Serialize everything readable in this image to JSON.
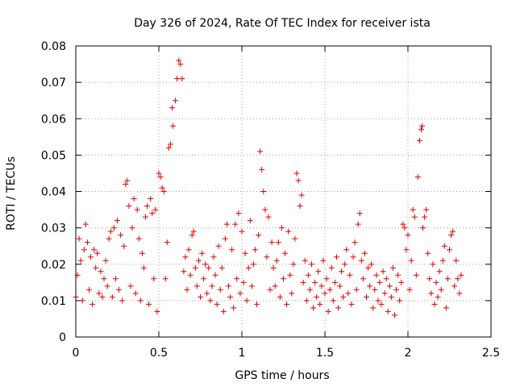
{
  "chart_data": {
    "type": "scatter",
    "title": "Day 326 of 2024, Rate Of TEC Index for receiver ista",
    "xlabel": "GPS time / hours",
    "ylabel": "ROTI / TECUs",
    "xlim": [
      0,
      2.5
    ],
    "ylim": [
      0,
      0.08
    ],
    "xticks": [
      0,
      0.5,
      1,
      1.5,
      2,
      2.5
    ],
    "xtick_labels": [
      "0",
      "0.5",
      "1",
      "1.5",
      "2",
      "2.5"
    ],
    "yticks": [
      0,
      0.01,
      0.02,
      0.03,
      0.04,
      0.05,
      0.06,
      0.07,
      0.08
    ],
    "ytick_labels": [
      "0",
      "0.01",
      "0.02",
      "0.03",
      "0.04",
      "0.05",
      "0.06",
      "0.07",
      "0.08"
    ],
    "grid": true,
    "marker": "+",
    "color": "#e00000",
    "series": [
      {
        "name": "ROTI",
        "points": [
          [
            0.0,
            0.011
          ],
          [
            0.01,
            0.017
          ],
          [
            0.02,
            0.027
          ],
          [
            0.03,
            0.021
          ],
          [
            0.04,
            0.01
          ],
          [
            0.05,
            0.024
          ],
          [
            0.06,
            0.031
          ],
          [
            0.07,
            0.026
          ],
          [
            0.08,
            0.013
          ],
          [
            0.09,
            0.022
          ],
          [
            0.1,
            0.009
          ],
          [
            0.11,
            0.024
          ],
          [
            0.12,
            0.019
          ],
          [
            0.13,
            0.023
          ],
          [
            0.14,
            0.012
          ],
          [
            0.15,
            0.018
          ],
          [
            0.16,
            0.011
          ],
          [
            0.17,
            0.016
          ],
          [
            0.18,
            0.021
          ],
          [
            0.19,
            0.014
          ],
          [
            0.2,
            0.027
          ],
          [
            0.21,
            0.029
          ],
          [
            0.22,
            0.011
          ],
          [
            0.23,
            0.03
          ],
          [
            0.24,
            0.016
          ],
          [
            0.25,
            0.032
          ],
          [
            0.26,
            0.013
          ],
          [
            0.27,
            0.028
          ],
          [
            0.28,
            0.01
          ],
          [
            0.29,
            0.025
          ],
          [
            0.3,
            0.042
          ],
          [
            0.31,
            0.043
          ],
          [
            0.32,
            0.036
          ],
          [
            0.33,
            0.014
          ],
          [
            0.34,
            0.03
          ],
          [
            0.35,
            0.038
          ],
          [
            0.36,
            0.012
          ],
          [
            0.37,
            0.035
          ],
          [
            0.38,
            0.027
          ],
          [
            0.39,
            0.01
          ],
          [
            0.4,
            0.023
          ],
          [
            0.41,
            0.019
          ],
          [
            0.42,
            0.033
          ],
          [
            0.43,
            0.036
          ],
          [
            0.44,
            0.009
          ],
          [
            0.45,
            0.038
          ],
          [
            0.46,
            0.034
          ],
          [
            0.47,
            0.016
          ],
          [
            0.48,
            0.035
          ],
          [
            0.49,
            0.007
          ],
          [
            0.5,
            0.045
          ],
          [
            0.51,
            0.044
          ],
          [
            0.52,
            0.041
          ],
          [
            0.53,
            0.04
          ],
          [
            0.54,
            0.016
          ],
          [
            0.55,
            0.026
          ],
          [
            0.56,
            0.052
          ],
          [
            0.57,
            0.053
          ],
          [
            0.58,
            0.063
          ],
          [
            0.585,
            0.058
          ],
          [
            0.6,
            0.065
          ],
          [
            0.61,
            0.071
          ],
          [
            0.62,
            0.076
          ],
          [
            0.63,
            0.075
          ],
          [
            0.64,
            0.071
          ],
          [
            0.65,
            0.018
          ],
          [
            0.66,
            0.022
          ],
          [
            0.67,
            0.013
          ],
          [
            0.68,
            0.024
          ],
          [
            0.69,
            0.017
          ],
          [
            0.7,
            0.028
          ],
          [
            0.71,
            0.029
          ],
          [
            0.72,
            0.019
          ],
          [
            0.73,
            0.014
          ],
          [
            0.74,
            0.021
          ],
          [
            0.75,
            0.011
          ],
          [
            0.76,
            0.023
          ],
          [
            0.77,
            0.016
          ],
          [
            0.78,
            0.02
          ],
          [
            0.79,
            0.012
          ],
          [
            0.8,
            0.019
          ],
          [
            0.81,
            0.01
          ],
          [
            0.82,
            0.014
          ],
          [
            0.83,
            0.022
          ],
          [
            0.84,
            0.017
          ],
          [
            0.85,
            0.009
          ],
          [
            0.86,
            0.025
          ],
          [
            0.87,
            0.013
          ],
          [
            0.88,
            0.019
          ],
          [
            0.89,
            0.007
          ],
          [
            0.9,
            0.027
          ],
          [
            0.91,
            0.031
          ],
          [
            0.92,
            0.014
          ],
          [
            0.93,
            0.011
          ],
          [
            0.94,
            0.024
          ],
          [
            0.95,
            0.008
          ],
          [
            0.96,
            0.031
          ],
          [
            0.97,
            0.016
          ],
          [
            0.98,
            0.034
          ],
          [
            0.99,
            0.012
          ],
          [
            1.0,
            0.029
          ],
          [
            1.01,
            0.015
          ],
          [
            1.02,
            0.023
          ],
          [
            1.03,
            0.01
          ],
          [
            1.04,
            0.019
          ],
          [
            1.05,
            0.032
          ],
          [
            1.06,
            0.014
          ],
          [
            1.07,
            0.02
          ],
          [
            1.08,
            0.024
          ],
          [
            1.09,
            0.009
          ],
          [
            1.1,
            0.028
          ],
          [
            1.11,
            0.051
          ],
          [
            1.12,
            0.046
          ],
          [
            1.13,
            0.04
          ],
          [
            1.14,
            0.035
          ],
          [
            1.15,
            0.022
          ],
          [
            1.16,
            0.033
          ],
          [
            1.17,
            0.013
          ],
          [
            1.18,
            0.026
          ],
          [
            1.19,
            0.019
          ],
          [
            1.2,
            0.014
          ],
          [
            1.21,
            0.021
          ],
          [
            1.22,
            0.026
          ],
          [
            1.23,
            0.011
          ],
          [
            1.24,
            0.03
          ],
          [
            1.25,
            0.016
          ],
          [
            1.26,
            0.023
          ],
          [
            1.27,
            0.009
          ],
          [
            1.28,
            0.029
          ],
          [
            1.29,
            0.017
          ],
          [
            1.3,
            0.012
          ],
          [
            1.31,
            0.02
          ],
          [
            1.32,
            0.027
          ],
          [
            1.33,
            0.045
          ],
          [
            1.34,
            0.043
          ],
          [
            1.35,
            0.036
          ],
          [
            1.36,
            0.039
          ],
          [
            1.37,
            0.015
          ],
          [
            1.38,
            0.021
          ],
          [
            1.39,
            0.01
          ],
          [
            1.4,
            0.017
          ],
          [
            1.41,
            0.013
          ],
          [
            1.42,
            0.02
          ],
          [
            1.43,
            0.008
          ],
          [
            1.44,
            0.015
          ],
          [
            1.45,
            0.011
          ],
          [
            1.46,
            0.018
          ],
          [
            1.47,
            0.009
          ],
          [
            1.48,
            0.014
          ],
          [
            1.49,
            0.021
          ],
          [
            1.5,
            0.012
          ],
          [
            1.51,
            0.016
          ],
          [
            1.52,
            0.007
          ],
          [
            1.53,
            0.013
          ],
          [
            1.54,
            0.019
          ],
          [
            1.55,
            0.01
          ],
          [
            1.56,
            0.015
          ],
          [
            1.57,
            0.022
          ],
          [
            1.58,
            0.008
          ],
          [
            1.59,
            0.014
          ],
          [
            1.6,
            0.018
          ],
          [
            1.61,
            0.011
          ],
          [
            1.62,
            0.02
          ],
          [
            1.63,
            0.024
          ],
          [
            1.64,
            0.012
          ],
          [
            1.65,
            0.017
          ],
          [
            1.66,
            0.009
          ],
          [
            1.67,
            0.022
          ],
          [
            1.68,
            0.026
          ],
          [
            1.69,
            0.013
          ],
          [
            1.7,
            0.031
          ],
          [
            1.71,
            0.034
          ],
          [
            1.72,
            0.021
          ],
          [
            1.73,
            0.016
          ],
          [
            1.74,
            0.023
          ],
          [
            1.75,
            0.011
          ],
          [
            1.76,
            0.019
          ],
          [
            1.77,
            0.014
          ],
          [
            1.78,
            0.02
          ],
          [
            1.79,
            0.008
          ],
          [
            1.8,
            0.013
          ],
          [
            1.81,
            0.017
          ],
          [
            1.82,
            0.01
          ],
          [
            1.83,
            0.015
          ],
          [
            1.84,
            0.009
          ],
          [
            1.85,
            0.018
          ],
          [
            1.86,
            0.012
          ],
          [
            1.87,
            0.016
          ],
          [
            1.88,
            0.007
          ],
          [
            1.89,
            0.014
          ],
          [
            1.9,
            0.011
          ],
          [
            1.91,
            0.019
          ],
          [
            1.92,
            0.006
          ],
          [
            1.93,
            0.013
          ],
          [
            1.94,
            0.017
          ],
          [
            1.95,
            0.01
          ],
          [
            1.96,
            0.015
          ],
          [
            1.97,
            0.031
          ],
          [
            1.98,
            0.03
          ],
          [
            1.99,
            0.024
          ],
          [
            2.0,
            0.028
          ],
          [
            2.01,
            0.013
          ],
          [
            2.02,
            0.021
          ],
          [
            2.03,
            0.035
          ],
          [
            2.04,
            0.033
          ],
          [
            2.05,
            0.017
          ],
          [
            2.06,
            0.044
          ],
          [
            2.07,
            0.054
          ],
          [
            2.08,
            0.057
          ],
          [
            2.085,
            0.058
          ],
          [
            2.09,
            0.03
          ],
          [
            2.1,
            0.033
          ],
          [
            2.11,
            0.035
          ],
          [
            2.12,
            0.023
          ],
          [
            2.13,
            0.016
          ],
          [
            2.14,
            0.012
          ],
          [
            2.15,
            0.02
          ],
          [
            2.16,
            0.009
          ],
          [
            2.17,
            0.015
          ],
          [
            2.18,
            0.011
          ],
          [
            2.19,
            0.018
          ],
          [
            2.2,
            0.013
          ],
          [
            2.21,
            0.021
          ],
          [
            2.22,
            0.025
          ],
          [
            2.23,
            0.008
          ],
          [
            2.24,
            0.016
          ],
          [
            2.25,
            0.024
          ],
          [
            2.26,
            0.028
          ],
          [
            2.27,
            0.029
          ],
          [
            2.28,
            0.014
          ],
          [
            2.29,
            0.021
          ],
          [
            2.3,
            0.016
          ],
          [
            2.31,
            0.012
          ],
          [
            2.32,
            0.017
          ]
        ]
      }
    ]
  }
}
